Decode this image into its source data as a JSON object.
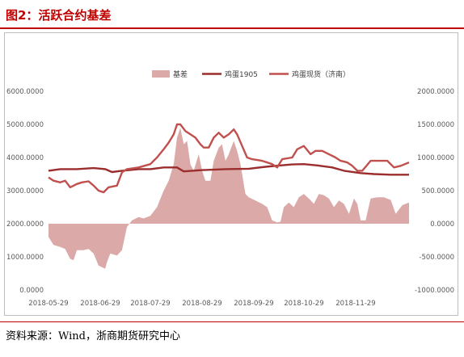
{
  "figure_title": "图2：活跃合约基差",
  "source_note": "资料来源：Wind，浙商期货研究中心",
  "colors": {
    "title": "#c00000",
    "basis_fill": "#dca9a9",
    "contract_line": "#9b2d2d",
    "spot_line": "#c0504d",
    "axis_text": "#595959",
    "rule": "#c00000"
  },
  "chart_data": {
    "type": "line+area",
    "grid": false,
    "legend_position": "top-center",
    "x_ticks": [
      "2018-05-29",
      "2018-06-29",
      "2018-07-29",
      "2018-08-29",
      "2018-09-29",
      "2018-10-29",
      "2018-11-29"
    ],
    "x_range": [
      "2018-05-29",
      "2018-12-31"
    ],
    "left_axis": {
      "range": [
        0,
        6000
      ],
      "ticks": [
        "0.0000",
        "1000.0000",
        "2000.0000",
        "3000.0000",
        "4000.0000",
        "5000.0000",
        "6000.0000"
      ]
    },
    "right_axis": {
      "range": [
        -1000,
        2000
      ],
      "ticks": [
        "-1000.0000",
        "-500.0000",
        "0.0000",
        "500.0000",
        "1000.0000",
        "1500.0000",
        "2000.0000"
      ]
    },
    "series": [
      {
        "name": "基差",
        "kind": "area",
        "axis": "right",
        "points": [
          [
            "2018-05-29",
            -200
          ],
          [
            "2018-06-01",
            -320
          ],
          [
            "2018-06-05",
            -350
          ],
          [
            "2018-06-08",
            -380
          ],
          [
            "2018-06-11",
            -530
          ],
          [
            "2018-06-13",
            -550
          ],
          [
            "2018-06-15",
            -400
          ],
          [
            "2018-06-19",
            -400
          ],
          [
            "2018-06-22",
            -380
          ],
          [
            "2018-06-25",
            -450
          ],
          [
            "2018-06-28",
            -630
          ],
          [
            "2018-07-02",
            -680
          ],
          [
            "2018-07-03",
            -580
          ],
          [
            "2018-07-05",
            -450
          ],
          [
            "2018-07-09",
            -480
          ],
          [
            "2018-07-12",
            -400
          ],
          [
            "2018-07-15",
            -50
          ],
          [
            "2018-07-18",
            50
          ],
          [
            "2018-07-22",
            100
          ],
          [
            "2018-07-25",
            80
          ],
          [
            "2018-07-29",
            120
          ],
          [
            "2018-08-02",
            250
          ],
          [
            "2018-08-06",
            500
          ],
          [
            "2018-08-09",
            650
          ],
          [
            "2018-08-12",
            900
          ],
          [
            "2018-08-14",
            1300
          ],
          [
            "2018-08-16",
            1450
          ],
          [
            "2018-08-18",
            1200
          ],
          [
            "2018-08-20",
            1250
          ],
          [
            "2018-08-22",
            900
          ],
          [
            "2018-08-24",
            800
          ],
          [
            "2018-08-27",
            1050
          ],
          [
            "2018-08-29",
            800
          ],
          [
            "2018-08-31",
            650
          ],
          [
            "2018-09-03",
            650
          ],
          [
            "2018-09-05",
            950
          ],
          [
            "2018-09-08",
            1150
          ],
          [
            "2018-09-10",
            1200
          ],
          [
            "2018-09-12",
            950
          ],
          [
            "2018-09-14",
            1050
          ],
          [
            "2018-09-17",
            1250
          ],
          [
            "2018-09-19",
            1100
          ],
          [
            "2018-09-21",
            900
          ],
          [
            "2018-09-24",
            450
          ],
          [
            "2018-09-26",
            400
          ],
          [
            "2018-09-30",
            350
          ],
          [
            "2018-10-04",
            300
          ],
          [
            "2018-10-07",
            250
          ],
          [
            "2018-10-10",
            50
          ],
          [
            "2018-10-13",
            20
          ],
          [
            "2018-10-15",
            30
          ],
          [
            "2018-10-17",
            250
          ],
          [
            "2018-10-20",
            320
          ],
          [
            "2018-10-23",
            250
          ],
          [
            "2018-10-26",
            400
          ],
          [
            "2018-10-29",
            450
          ],
          [
            "2018-11-01",
            380
          ],
          [
            "2018-11-04",
            300
          ],
          [
            "2018-11-07",
            450
          ],
          [
            "2018-11-10",
            430
          ],
          [
            "2018-11-13",
            380
          ],
          [
            "2018-11-16",
            250
          ],
          [
            "2018-11-19",
            350
          ],
          [
            "2018-11-22",
            300
          ],
          [
            "2018-11-25",
            150
          ],
          [
            "2018-11-28",
            380
          ],
          [
            "2018-11-30",
            300
          ],
          [
            "2018-12-02",
            50
          ],
          [
            "2018-12-05",
            50
          ],
          [
            "2018-12-08",
            380
          ],
          [
            "2018-12-12",
            400
          ],
          [
            "2018-12-16",
            400
          ],
          [
            "2018-12-20",
            360
          ],
          [
            "2018-12-23",
            150
          ],
          [
            "2018-12-27",
            280
          ],
          [
            "2018-12-31",
            320
          ]
        ]
      },
      {
        "name": "鸡蛋1905",
        "kind": "line",
        "axis": "left",
        "points": [
          [
            "2018-05-29",
            3600
          ],
          [
            "2018-06-05",
            3650
          ],
          [
            "2018-06-15",
            3650
          ],
          [
            "2018-06-25",
            3680
          ],
          [
            "2018-07-02",
            3650
          ],
          [
            "2018-07-06",
            3560
          ],
          [
            "2018-07-12",
            3600
          ],
          [
            "2018-07-22",
            3650
          ],
          [
            "2018-07-29",
            3650
          ],
          [
            "2018-08-06",
            3700
          ],
          [
            "2018-08-14",
            3700
          ],
          [
            "2018-08-18",
            3580
          ],
          [
            "2018-08-29",
            3620
          ],
          [
            "2018-09-12",
            3650
          ],
          [
            "2018-09-26",
            3660
          ],
          [
            "2018-10-06",
            3720
          ],
          [
            "2018-10-15",
            3760
          ],
          [
            "2018-10-22",
            3790
          ],
          [
            "2018-10-29",
            3800
          ],
          [
            "2018-11-06",
            3760
          ],
          [
            "2018-11-15",
            3700
          ],
          [
            "2018-11-22",
            3600
          ],
          [
            "2018-12-02",
            3530
          ],
          [
            "2018-12-10",
            3500
          ],
          [
            "2018-12-20",
            3480
          ],
          [
            "2018-12-31",
            3480
          ]
        ]
      },
      {
        "name": "鸡蛋现货（济南）",
        "kind": "line",
        "axis": "left",
        "points": [
          [
            "2018-05-29",
            3400
          ],
          [
            "2018-06-01",
            3300
          ],
          [
            "2018-06-05",
            3250
          ],
          [
            "2018-06-08",
            3300
          ],
          [
            "2018-06-11",
            3100
          ],
          [
            "2018-06-15",
            3200
          ],
          [
            "2018-06-18",
            3250
          ],
          [
            "2018-06-22",
            3280
          ],
          [
            "2018-06-25",
            3150
          ],
          [
            "2018-06-28",
            3000
          ],
          [
            "2018-07-01",
            2950
          ],
          [
            "2018-07-04",
            3100
          ],
          [
            "2018-07-09",
            3150
          ],
          [
            "2018-07-12",
            3550
          ],
          [
            "2018-07-15",
            3650
          ],
          [
            "2018-07-22",
            3700
          ],
          [
            "2018-07-29",
            3800
          ],
          [
            "2018-08-02",
            4000
          ],
          [
            "2018-08-06",
            4250
          ],
          [
            "2018-08-09",
            4450
          ],
          [
            "2018-08-12",
            4700
          ],
          [
            "2018-08-14",
            5000
          ],
          [
            "2018-08-16",
            5000
          ],
          [
            "2018-08-19",
            4800
          ],
          [
            "2018-08-22",
            4700
          ],
          [
            "2018-08-25",
            4600
          ],
          [
            "2018-08-28",
            4400
          ],
          [
            "2018-08-30",
            4300
          ],
          [
            "2018-09-02",
            4300
          ],
          [
            "2018-09-05",
            4600
          ],
          [
            "2018-09-08",
            4750
          ],
          [
            "2018-09-11",
            4600
          ],
          [
            "2018-09-14",
            4700
          ],
          [
            "2018-09-17",
            4850
          ],
          [
            "2018-09-19",
            4700
          ],
          [
            "2018-09-22",
            4350
          ],
          [
            "2018-09-25",
            4000
          ],
          [
            "2018-09-28",
            3950
          ],
          [
            "2018-10-04",
            3900
          ],
          [
            "2018-10-10",
            3800
          ],
          [
            "2018-10-13",
            3700
          ],
          [
            "2018-10-16",
            3950
          ],
          [
            "2018-10-22",
            4000
          ],
          [
            "2018-10-25",
            4250
          ],
          [
            "2018-10-29",
            4350
          ],
          [
            "2018-11-02",
            4100
          ],
          [
            "2018-11-05",
            4200
          ],
          [
            "2018-11-09",
            4200
          ],
          [
            "2018-11-13",
            4100
          ],
          [
            "2018-11-17",
            4000
          ],
          [
            "2018-11-20",
            3900
          ],
          [
            "2018-11-24",
            3850
          ],
          [
            "2018-11-27",
            3750
          ],
          [
            "2018-11-30",
            3600
          ],
          [
            "2018-12-03",
            3600
          ],
          [
            "2018-12-08",
            3900
          ],
          [
            "2018-12-14",
            3900
          ],
          [
            "2018-12-18",
            3900
          ],
          [
            "2018-12-22",
            3700
          ],
          [
            "2018-12-26",
            3750
          ],
          [
            "2018-12-31",
            3850
          ]
        ]
      }
    ]
  }
}
